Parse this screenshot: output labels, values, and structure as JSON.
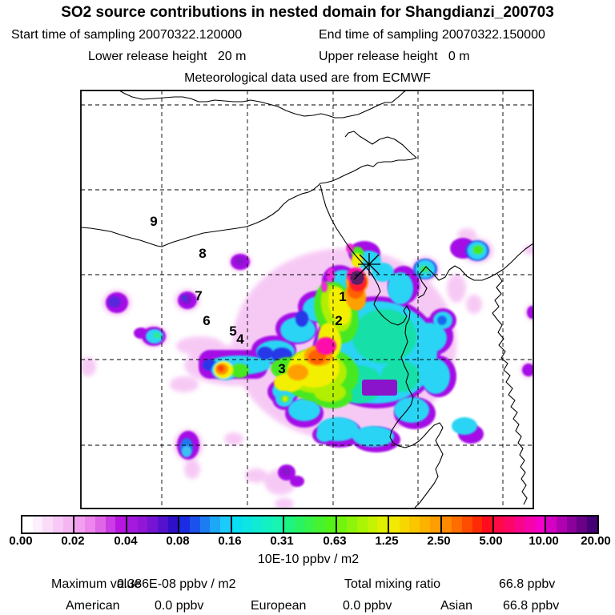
{
  "header": {
    "title": "SO2 source contributions in nested domain for Shangdianzi_200703",
    "start_time": "Start time of sampling 20070322.120000",
    "end_time": "End time of sampling 20070322.150000",
    "lower_release": "Lower release height   20 m",
    "upper_release": "Upper release height   0 m",
    "met_source": "Meteorological data used are from ECMWF"
  },
  "map": {
    "station_marker": "asterisk",
    "labels": [
      {
        "text": "1"
      },
      {
        "text": "2"
      },
      {
        "text": "3"
      },
      {
        "text": "4"
      },
      {
        "text": "5"
      },
      {
        "text": "6"
      },
      {
        "text": "7"
      },
      {
        "text": "8"
      },
      {
        "text": "9"
      }
    ],
    "palette": {
      "plume_outline_purple": "#a50ae6",
      "plume_cyan": "#2bd4f4",
      "plume_teal": "#18e0a8",
      "plume_green": "#46e822",
      "plume_yellow": "#f3ef00",
      "plume_orange": "#ffa000",
      "plume_red": "#ff1a2e",
      "plume_magenta": "#ff0faa",
      "plume_core_dark": "#5c2066",
      "fringe_pink": "#f6c4f4",
      "blue_patch": "#2838e8"
    }
  },
  "colorbar": {
    "ticks": [
      "0.00",
      "0.02",
      "0.04",
      "0.08",
      "0.16",
      "0.31",
      "0.63",
      "1.25",
      "2.50",
      "5.00",
      "10.00",
      "20.00"
    ],
    "unit": "10E-10 ppbv / m2",
    "segments": [
      [
        "#ffffff",
        "#fdeffd",
        "#fadcf9",
        "#f7c9f6",
        "#f4b6f2"
      ],
      [
        "#f1a0ef",
        "#ec86ec",
        "#e066e8",
        "#cc3ce4",
        "#b616e0"
      ],
      [
        "#a518dd",
        "#9116d8",
        "#7614d3",
        "#5412ce",
        "#2e10c9"
      ],
      [
        "#1c2be4",
        "#1c52ec",
        "#1c7df2",
        "#1ca8f6",
        "#1ccbfa"
      ],
      [
        "#08dff2",
        "#0ce5e2",
        "#10ebd2",
        "#14f1c1",
        "#18f5b0"
      ],
      [
        "#1cf381",
        "#2af363",
        "#38f348",
        "#46f32e",
        "#54f318"
      ],
      [
        "#72f40e",
        "#8ef40a",
        "#aaf406",
        "#c6f203",
        "#e0f000"
      ],
      [
        "#f2ea00",
        "#f6d800",
        "#fac600",
        "#feb200",
        "#ff9e00"
      ],
      [
        "#ff8a00",
        "#ff6c00",
        "#ff4c00",
        "#ff2a06",
        "#ff0c1e"
      ],
      [
        "#ff0a48",
        "#fc0768",
        "#f90589",
        "#f603a9",
        "#f301c9"
      ],
      [
        "#d400c4",
        "#b000b0",
        "#8c009c",
        "#680088",
        "#440074"
      ]
    ]
  },
  "stats": {
    "max_label": "Maximum value",
    "max_value": "0.386E-08 ppbv / m2",
    "tmr_label": "Total mixing ratio",
    "tmr_value": "66.8 ppbv",
    "regions": [
      {
        "name": "American",
        "value": "0.0 ppbv"
      },
      {
        "name": "European",
        "value": "0.0 ppbv"
      },
      {
        "name": "Asian",
        "value": "66.8 ppbv"
      }
    ]
  },
  "chart_data": {
    "type": "heatmap",
    "title": "SO2 source contributions in nested domain for Shangdianzi_200703",
    "subtitle": [
      "Start time of sampling 20070322.120000",
      "End time of sampling 20070322.150000",
      "Lower release height 20 m",
      "Upper release height 0 m",
      "Meteorological data used are from ECMWF"
    ],
    "colorbar_levels": [
      0.0,
      0.02,
      0.04,
      0.08,
      0.16,
      0.31,
      0.63,
      1.25,
      2.5,
      5.0,
      10.0,
      20.0
    ],
    "colorbar_units": "10E-10 ppbv / m2",
    "scale": "logarithmic factor-2 bins",
    "legend_position": "bottom",
    "grid": "dashed lat/lon graticule, 5x5 cells",
    "station": "Shangdianzi, marked with asterisk near plume maximum",
    "max_value": "0.386E-08 ppbv / m2",
    "total_mixing_ratio_ppbv": 66.8,
    "contributions_ppbv": {
      "American": 0.0,
      "European": 0.0,
      "Asian": 66.8
    },
    "numbered_source_locations": [
      "1",
      "2",
      "3",
      "4",
      "5",
      "6",
      "7",
      "8",
      "9"
    ],
    "description": "Footprint plume over NE China / Bohai region; maximum (dark purple core >20 units) just SW of station marker, broad cyan/green plume extending SW, isolated hotspots west and south"
  }
}
